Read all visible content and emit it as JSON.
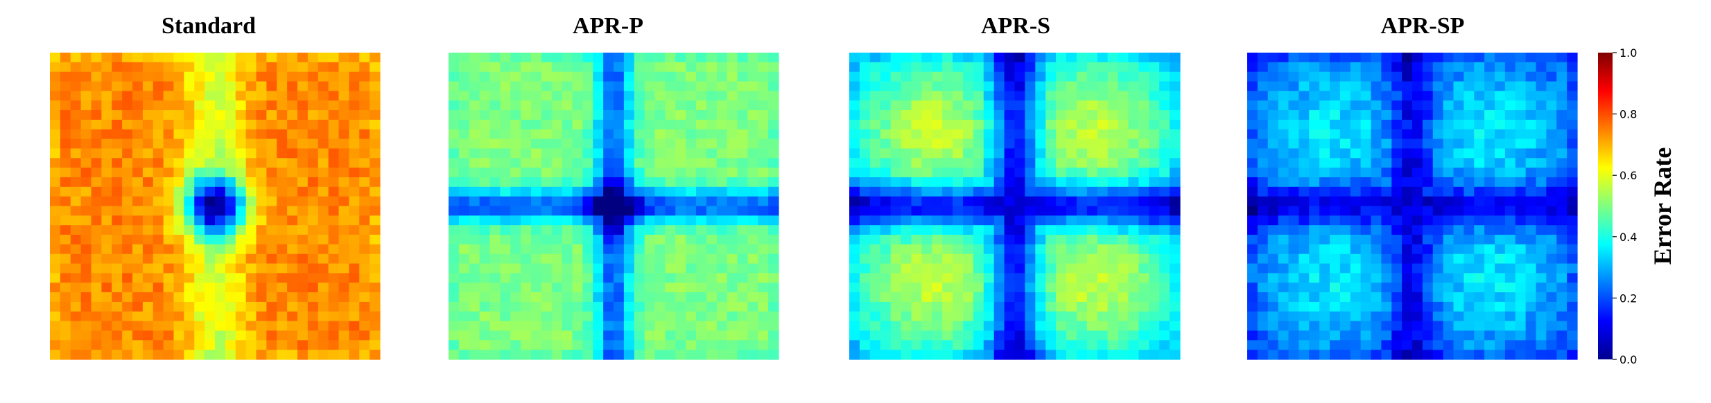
{
  "chart_data": {
    "type": "heatmap",
    "grid_size": 32,
    "colormap": "jet",
    "value_range": [
      0,
      1
    ],
    "panels": [
      {
        "title": "Standard",
        "model": {
          "base": 0.74,
          "center_amp": 0.58,
          "center_width": 2.2,
          "cross_amp": 0.16,
          "cross_width": 2.0,
          "cross_axis": "vertical",
          "lobe_amp": 0.0,
          "lobe_width": 1.0,
          "noise": 0.05
        }
      },
      {
        "title": "APR-P",
        "model": {
          "base": 0.5,
          "center_amp": 0.35,
          "center_width": 1.8,
          "cross_amp": 0.28,
          "cross_width": 1.3,
          "cross_axis": "both",
          "lobe_amp": 0.0,
          "lobe_width": 1.0,
          "noise": 0.04
        }
      },
      {
        "title": "APR-S",
        "model": {
          "base": 0.33,
          "center_amp": 0.0,
          "center_width": 1.0,
          "cross_amp": 0.26,
          "cross_width": 1.7,
          "cross_axis": "both",
          "lobe_amp": 0.31,
          "lobe_width": 6.5,
          "noise": 0.04
        }
      },
      {
        "title": "APR-SP",
        "model": {
          "base": 0.22,
          "center_amp": 0.0,
          "center_width": 1.0,
          "cross_amp": 0.14,
          "cross_width": 1.5,
          "cross_axis": "both",
          "lobe_amp": 0.18,
          "lobe_width": 6.0,
          "noise": 0.05
        }
      }
    ],
    "colorbar": {
      "label": "Error Rate",
      "ticks": [
        0.0,
        0.2,
        0.4,
        0.6,
        0.8,
        1.0
      ],
      "tick_labels": [
        "0.0",
        "0.2",
        "0.4",
        "0.6",
        "0.8",
        "1.0"
      ]
    }
  }
}
